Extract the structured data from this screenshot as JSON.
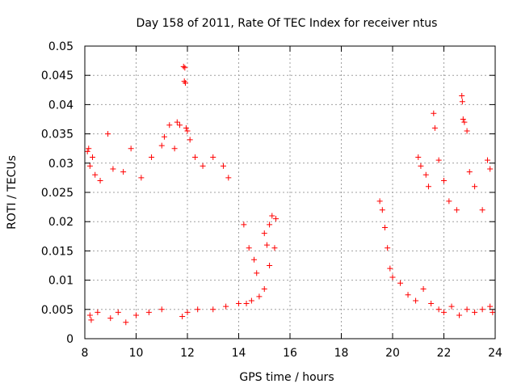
{
  "chart_data": {
    "type": "scatter",
    "title": "Day 158 of 2011, Rate Of TEC Index for receiver ntus",
    "xlabel": "GPS time / hours",
    "ylabel": "ROTI / TECUs",
    "xlim": [
      8,
      24
    ],
    "ylim": [
      0,
      0.05
    ],
    "xticks": [
      8,
      10,
      12,
      14,
      16,
      18,
      20,
      22,
      24
    ],
    "xtick_labels": [
      "8",
      "10",
      "12",
      "14",
      "16",
      "18",
      "20",
      "22",
      "24"
    ],
    "yticks": [
      0,
      0.005,
      0.01,
      0.015,
      0.02,
      0.025,
      0.03,
      0.035,
      0.04,
      0.045,
      0.05
    ],
    "ytick_labels": [
      "0",
      "0.005",
      "0.01",
      "0.015",
      "0.02",
      "0.025",
      "0.03",
      "0.035",
      "0.04",
      "0.045",
      "0.05"
    ],
    "grid": true,
    "marker": "+",
    "color": "#ff0000",
    "series": [
      {
        "name": "ROTI",
        "points": [
          [
            8.1,
            0.032
          ],
          [
            8.15,
            0.0325
          ],
          [
            8.2,
            0.0295
          ],
          [
            8.3,
            0.031
          ],
          [
            8.4,
            0.028
          ],
          [
            8.6,
            0.027
          ],
          [
            8.9,
            0.035
          ],
          [
            9.1,
            0.029
          ],
          [
            9.5,
            0.0285
          ],
          [
            9.8,
            0.0325
          ],
          [
            10.2,
            0.0275
          ],
          [
            10.6,
            0.031
          ],
          [
            11.0,
            0.033
          ],
          [
            11.1,
            0.0345
          ],
          [
            11.3,
            0.0365
          ],
          [
            11.5,
            0.0325
          ],
          [
            11.6,
            0.037
          ],
          [
            11.7,
            0.0365
          ],
          [
            11.85,
            0.0465
          ],
          [
            11.9,
            0.0463
          ],
          [
            11.88,
            0.044
          ],
          [
            11.92,
            0.0437
          ],
          [
            11.95,
            0.036
          ],
          [
            12.0,
            0.0355
          ],
          [
            12.1,
            0.034
          ],
          [
            12.3,
            0.031
          ],
          [
            12.6,
            0.0295
          ],
          [
            13.0,
            0.031
          ],
          [
            13.4,
            0.0295
          ],
          [
            13.6,
            0.0275
          ],
          [
            8.2,
            0.004
          ],
          [
            8.25,
            0.0032
          ],
          [
            8.5,
            0.0045
          ],
          [
            9.0,
            0.0035
          ],
          [
            9.3,
            0.0045
          ],
          [
            9.6,
            0.0028
          ],
          [
            10.0,
            0.004
          ],
          [
            10.5,
            0.0045
          ],
          [
            11.0,
            0.005
          ],
          [
            11.8,
            0.0038
          ],
          [
            12.0,
            0.0045
          ],
          [
            12.4,
            0.005
          ],
          [
            13.0,
            0.005
          ],
          [
            13.5,
            0.0055
          ],
          [
            14.0,
            0.006
          ],
          [
            14.3,
            0.006
          ],
          [
            14.5,
            0.0065
          ],
          [
            14.8,
            0.0072
          ],
          [
            15.0,
            0.0085
          ],
          [
            15.2,
            0.0125
          ],
          [
            15.4,
            0.0155
          ],
          [
            14.2,
            0.0195
          ],
          [
            14.4,
            0.0155
          ],
          [
            14.6,
            0.0135
          ],
          [
            15.0,
            0.018
          ],
          [
            15.2,
            0.0195
          ],
          [
            15.3,
            0.021
          ],
          [
            15.45,
            0.0205
          ],
          [
            15.1,
            0.016
          ],
          [
            14.7,
            0.0112
          ],
          [
            19.5,
            0.0235
          ],
          [
            19.6,
            0.022
          ],
          [
            19.7,
            0.019
          ],
          [
            19.8,
            0.0155
          ],
          [
            19.9,
            0.012
          ],
          [
            20.0,
            0.0105
          ],
          [
            20.3,
            0.0095
          ],
          [
            20.6,
            0.0075
          ],
          [
            20.9,
            0.0065
          ],
          [
            21.2,
            0.0085
          ],
          [
            21.0,
            0.031
          ],
          [
            21.1,
            0.0295
          ],
          [
            21.3,
            0.028
          ],
          [
            21.4,
            0.026
          ],
          [
            21.6,
            0.0385
          ],
          [
            21.65,
            0.036
          ],
          [
            21.8,
            0.0305
          ],
          [
            22.0,
            0.027
          ],
          [
            22.2,
            0.0235
          ],
          [
            22.5,
            0.022
          ],
          [
            22.7,
            0.0415
          ],
          [
            22.72,
            0.0405
          ],
          [
            22.75,
            0.0375
          ],
          [
            22.8,
            0.037
          ],
          [
            22.9,
            0.0355
          ],
          [
            23.0,
            0.0285
          ],
          [
            23.2,
            0.026
          ],
          [
            23.5,
            0.022
          ],
          [
            23.7,
            0.0305
          ],
          [
            23.8,
            0.029
          ],
          [
            21.5,
            0.006
          ],
          [
            21.8,
            0.005
          ],
          [
            22.0,
            0.0045
          ],
          [
            22.3,
            0.0055
          ],
          [
            22.6,
            0.004
          ],
          [
            22.9,
            0.005
          ],
          [
            23.2,
            0.0045
          ],
          [
            23.5,
            0.005
          ],
          [
            23.8,
            0.0055
          ],
          [
            23.9,
            0.0045
          ]
        ]
      }
    ]
  }
}
